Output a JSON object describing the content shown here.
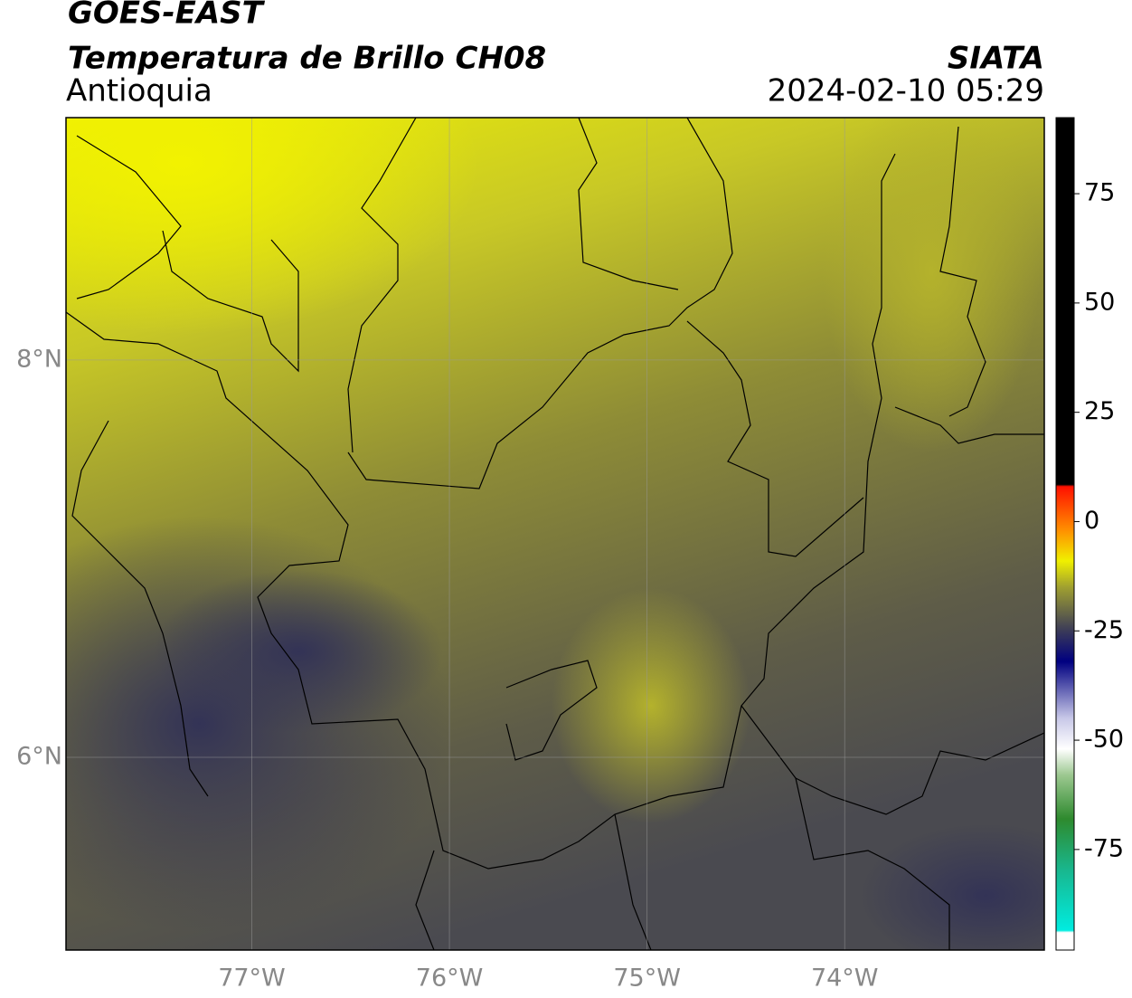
{
  "header": {
    "title": "GOES-EAST",
    "subtitle": "Temperatura de Brillo CH08",
    "region": "Antioquia",
    "source": "SIATA",
    "datetime": "2024-02-10 05:29"
  },
  "chart_data": {
    "type": "map",
    "xlim": [
      -77.94,
      -72.99
    ],
    "ylim": [
      5.03,
      9.22
    ],
    "xticks": [
      {
        "value": -77,
        "label": "77°W"
      },
      {
        "value": -76,
        "label": "76°W"
      },
      {
        "value": -75,
        "label": "75°W"
      },
      {
        "value": -74,
        "label": "74°W"
      }
    ],
    "yticks": [
      {
        "value": 6,
        "label": "6°N"
      },
      {
        "value": 8,
        "label": "8°N"
      }
    ],
    "grid": true,
    "colorbar": {
      "lim": [
        -98,
        92.4
      ],
      "ticks": [
        -75,
        -50,
        -25,
        0,
        25,
        50,
        75
      ],
      "stops": [
        {
          "value": -98,
          "color": "#ffffff"
        },
        {
          "value": -94,
          "color": "#ffffff"
        },
        {
          "value": -93.5,
          "color": "#00ece0"
        },
        {
          "value": -80,
          "color": "#18b890"
        },
        {
          "value": -68,
          "color": "#2e8a2e"
        },
        {
          "value": -58,
          "color": "#9cc890"
        },
        {
          "value": -52,
          "color": "#ffffff"
        },
        {
          "value": -45,
          "color": "#c8c8e8"
        },
        {
          "value": -32,
          "color": "#000080"
        },
        {
          "value": -25,
          "color": "#3a3a58"
        },
        {
          "value": -15,
          "color": "#a0a030"
        },
        {
          "value": -9,
          "color": "#f0f000"
        },
        {
          "value": -2,
          "color": "#ff9000"
        },
        {
          "value": 8,
          "color": "#ff1000"
        },
        {
          "value": 8.5,
          "color": "#000000"
        },
        {
          "value": 92.4,
          "color": "#000000"
        }
      ]
    }
  }
}
